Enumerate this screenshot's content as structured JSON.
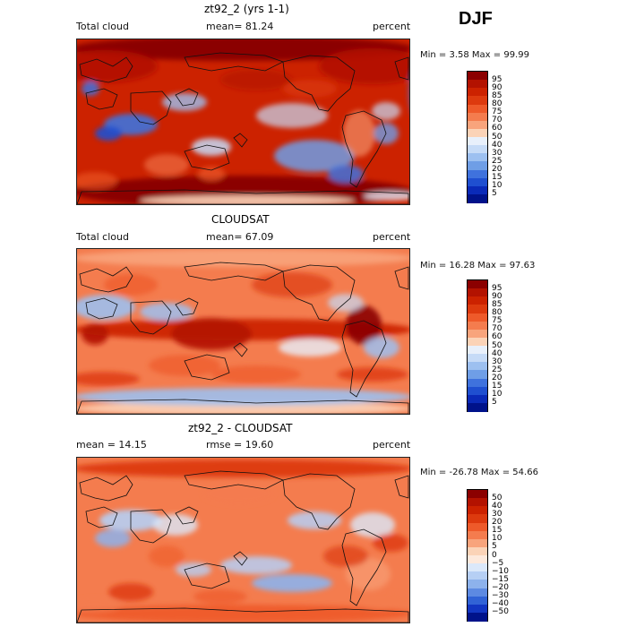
{
  "season": "DJF",
  "panels": [
    {
      "title": "zt92_2 (yrs 1-1)",
      "left_label": "Total cloud",
      "center_label": "mean=  81.24",
      "right_label": "percent",
      "minmax": "Min =   3.58 Max =  99.99",
      "colorbar_labels": [
        "95",
        "90",
        "85",
        "80",
        "75",
        "70",
        "60",
        "50",
        "40",
        "30",
        "25",
        "20",
        "15",
        "10",
        "5"
      ],
      "colorbar_colors": [
        "#8b0000",
        "#b31200",
        "#cc2200",
        "#dd3a0e",
        "#ee5a2a",
        "#f47c4e",
        "#f8a47c",
        "#fbd3b7",
        "#e8f0fb",
        "#c6dbf7",
        "#9dc0f0",
        "#6f9ee6",
        "#3f72dd",
        "#1f4fd0",
        "#0a2ab8",
        "#00128a"
      ]
    },
    {
      "title": "CLOUDSAT",
      "left_label": "Total cloud",
      "center_label": "mean=  67.09",
      "right_label": "percent",
      "minmax": "Min =  16.28 Max =  97.63",
      "colorbar_labels": [
        "95",
        "90",
        "85",
        "80",
        "75",
        "70",
        "60",
        "50",
        "40",
        "30",
        "25",
        "20",
        "15",
        "10",
        "5"
      ],
      "colorbar_colors": [
        "#8b0000",
        "#b31200",
        "#cc2200",
        "#dd3a0e",
        "#ee5a2a",
        "#f47c4e",
        "#f8a47c",
        "#fbd3b7",
        "#e8f0fb",
        "#c6dbf7",
        "#9dc0f0",
        "#6f9ee6",
        "#3f72dd",
        "#1f4fd0",
        "#0a2ab8",
        "#00128a"
      ]
    },
    {
      "title": "zt92_2 - CLOUDSAT",
      "left_label": "mean =  14.15",
      "center_label": "rmse =  19.60",
      "right_label": "percent",
      "minmax": "Min = -26.78 Max =  54.66",
      "colorbar_labels": [
        "50",
        "40",
        "30",
        "20",
        "15",
        "10",
        "5",
        "0",
        "−5",
        "−10",
        "−15",
        "−20",
        "−30",
        "−40",
        "−50"
      ],
      "colorbar_colors": [
        "#8b0000",
        "#b31200",
        "#cc2200",
        "#dd3a0e",
        "#ee5a2a",
        "#f47c4e",
        "#f8a47c",
        "#fbd3b7",
        "#fde9dc",
        "#dbe8fa",
        "#b6cff4",
        "#8db2ec",
        "#5d8ae2",
        "#3163d6",
        "#1236c2",
        "#00128a"
      ]
    }
  ],
  "chart_data": [
    {
      "type": "heatmap",
      "title": "zt92_2 (yrs 1-1)",
      "variable": "Total cloud",
      "units": "percent",
      "season": "DJF",
      "mean": 81.24,
      "min": 3.58,
      "max": 99.99,
      "levels": [
        5,
        10,
        15,
        20,
        25,
        30,
        40,
        50,
        60,
        70,
        75,
        80,
        85,
        90,
        95
      ]
    },
    {
      "type": "heatmap",
      "title": "CLOUDSAT",
      "variable": "Total cloud",
      "units": "percent",
      "season": "DJF",
      "mean": 67.09,
      "min": 16.28,
      "max": 97.63,
      "levels": [
        5,
        10,
        15,
        20,
        25,
        30,
        40,
        50,
        60,
        70,
        75,
        80,
        85,
        90,
        95
      ]
    },
    {
      "type": "heatmap",
      "title": "zt92_2 - CLOUDSAT",
      "units": "percent",
      "season": "DJF",
      "mean": 14.15,
      "rmse": 19.6,
      "min": -26.78,
      "max": 54.66,
      "levels": [
        -50,
        -40,
        -30,
        -20,
        -15,
        -10,
        -5,
        0,
        5,
        10,
        15,
        20,
        30,
        40,
        50
      ]
    }
  ]
}
